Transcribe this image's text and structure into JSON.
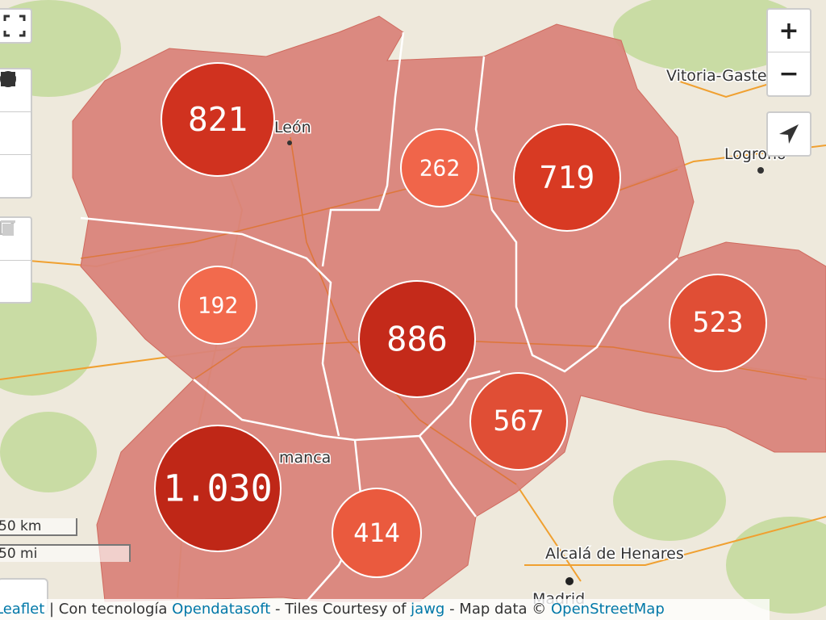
{
  "map": {
    "place_labels": [
      "León",
      "Vitoria-Gaste",
      "Logroño",
      "manca",
      "Alcalá de Henares",
      "Madrid"
    ],
    "clusters": [
      {
        "label": "821",
        "color": "#d0321f"
      },
      {
        "label": "262",
        "color": "#f0654a"
      },
      {
        "label": "719",
        "color": "#d83a23"
      },
      {
        "label": "192",
        "color": "#f26a4d"
      },
      {
        "label": "886",
        "color": "#c42a1a"
      },
      {
        "label": "523",
        "color": "#e04e35"
      },
      {
        "label": "567",
        "color": "#e04e35"
      },
      {
        "label": "1.030",
        "color": "#bf2717"
      },
      {
        "label": "414",
        "color": "#ea5a3e"
      }
    ],
    "zoom_controls": [
      "+",
      "−"
    ],
    "scale": [
      "50 km",
      "50 mi"
    ],
    "attribution": [
      "Leaflet",
      " | Con tecnología ",
      "Opendatasoft",
      " - Tiles Courtesy of ",
      "jawg",
      " - Map data © ",
      "OpenStreetMap"
    ]
  }
}
